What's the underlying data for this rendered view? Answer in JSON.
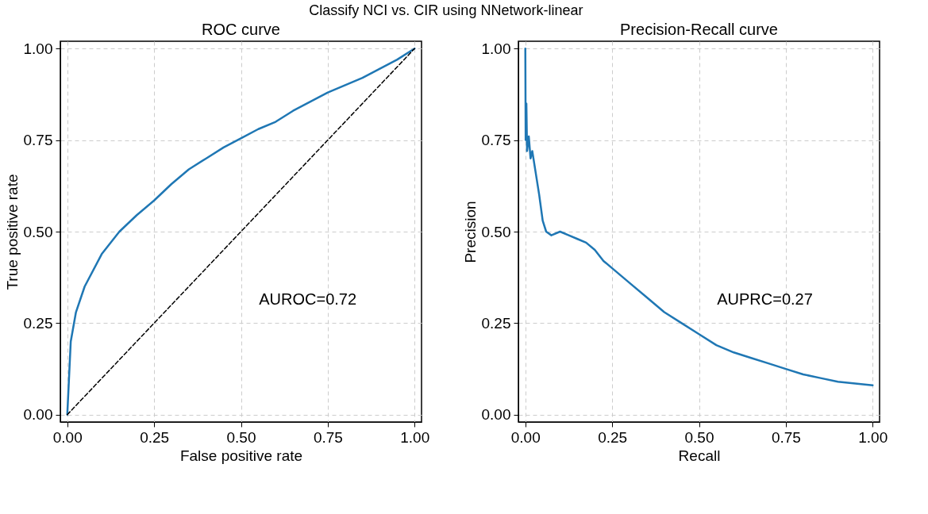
{
  "chart_data": [
    {
      "type": "line",
      "title": "ROC curve",
      "xlabel": "False positive rate",
      "ylabel": "True positive rate",
      "annotations": [
        "Classify NCI vs. CIR using NNetwork-linear",
        "AUROC=0.72"
      ],
      "grid": true,
      "xlim": [
        -0.02,
        1.02
      ],
      "ylim": [
        -0.02,
        1.02
      ],
      "xticks": [
        {
          "value": 0,
          "label": "0.00"
        },
        {
          "value": 0.25,
          "label": "0.25"
        },
        {
          "value": 0.5,
          "label": "0.50"
        },
        {
          "value": 0.75,
          "label": "0.75"
        },
        {
          "value": 1,
          "label": "1.00"
        }
      ],
      "yticks": [
        {
          "value": 0,
          "label": "0.00"
        },
        {
          "value": 0.25,
          "label": "0.25"
        },
        {
          "value": 0.5,
          "label": "0.50"
        },
        {
          "value": 0.75,
          "label": "0.75"
        },
        {
          "value": 1,
          "label": "1.00"
        }
      ],
      "series": [
        {
          "color": "#1f77b4",
          "line_style": "solid",
          "x": [
            0,
            0.005,
            0.01,
            0.025,
            0.05,
            0.1,
            0.15,
            0.2,
            0.25,
            0.3,
            0.35,
            0.4,
            0.45,
            0.5,
            0.55,
            0.6,
            0.65,
            0.7,
            0.75,
            0.8,
            0.85,
            0.9,
            0.95,
            1
          ],
          "values": [
            0,
            0.1,
            0.2,
            0.28,
            0.35,
            0.44,
            0.5,
            0.545,
            0.585,
            0.63,
            0.67,
            0.7,
            0.73,
            0.755,
            0.78,
            0.8,
            0.83,
            0.855,
            0.88,
            0.9,
            0.92,
            0.945,
            0.97,
            1
          ]
        },
        {
          "color": "#000000",
          "line_style": "dashed",
          "x": [
            0,
            1
          ],
          "values": [
            0,
            1
          ]
        }
      ]
    },
    {
      "type": "line",
      "title": "Precision-Recall curve",
      "xlabel": "Recall",
      "ylabel": "Precision",
      "annotations": [
        "AUPRC=0.27"
      ],
      "grid": true,
      "xlim": [
        -0.02,
        1.02
      ],
      "ylim": [
        -0.02,
        1.02
      ],
      "xticks": [
        {
          "value": 0,
          "label": "0.00"
        },
        {
          "value": 0.25,
          "label": "0.25"
        },
        {
          "value": 0.5,
          "label": "0.50"
        },
        {
          "value": 0.75,
          "label": "0.75"
        },
        {
          "value": 1,
          "label": "1.00"
        }
      ],
      "yticks": [
        {
          "value": 0,
          "label": "0.00"
        },
        {
          "value": 0.25,
          "label": "0.25"
        },
        {
          "value": 0.5,
          "label": "0.50"
        },
        {
          "value": 0.75,
          "label": "0.75"
        },
        {
          "value": 1,
          "label": "1.00"
        }
      ],
      "series": [
        {
          "color": "#1f77b4",
          "line_style": "solid",
          "x": [
            0,
            0.001,
            0.003,
            0.005,
            0.01,
            0.015,
            0.02,
            0.03,
            0.04,
            0.05,
            0.06,
            0.075,
            0.1,
            0.125,
            0.15,
            0.175,
            0.2,
            0.225,
            0.25,
            0.3,
            0.35,
            0.4,
            0.45,
            0.5,
            0.55,
            0.6,
            0.65,
            0.7,
            0.75,
            0.8,
            0.85,
            0.9,
            0.95,
            1
          ],
          "values": [
            1,
            0.75,
            0.85,
            0.72,
            0.76,
            0.7,
            0.72,
            0.66,
            0.6,
            0.53,
            0.5,
            0.49,
            0.5,
            0.49,
            0.48,
            0.47,
            0.45,
            0.42,
            0.4,
            0.36,
            0.32,
            0.28,
            0.25,
            0.22,
            0.19,
            0.17,
            0.155,
            0.14,
            0.125,
            0.11,
            0.1,
            0.09,
            0.085,
            0.08
          ]
        }
      ]
    }
  ]
}
